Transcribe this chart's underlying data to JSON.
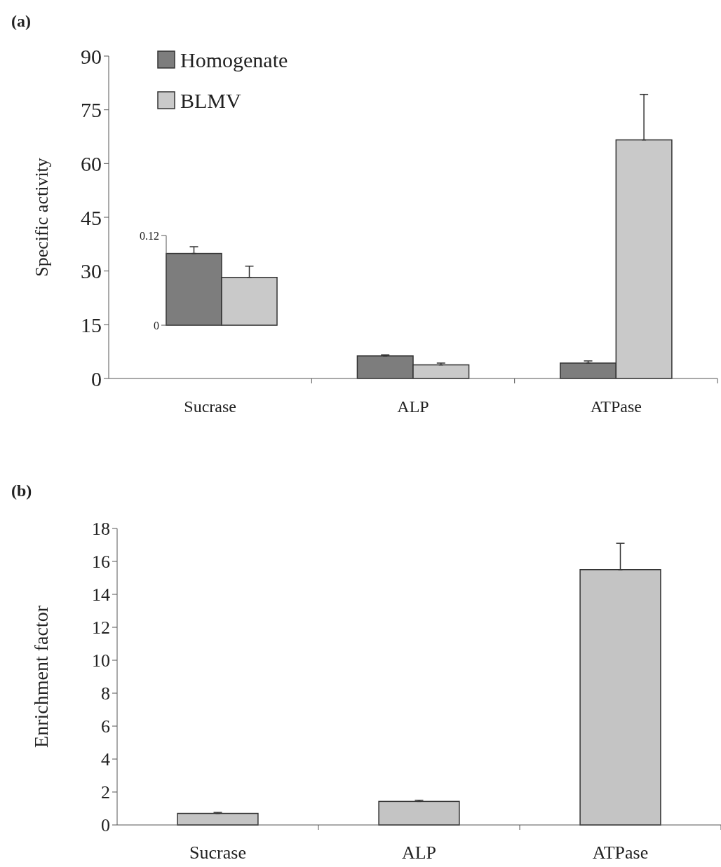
{
  "chart_data": [
    {
      "type": "bar",
      "title": "(a)",
      "ylabel": "Specific activity",
      "categories": [
        "Sucrase",
        "ALP",
        "ATPase"
      ],
      "ylim": [
        0,
        90
      ],
      "yticks": [
        0,
        15,
        30,
        45,
        60,
        75,
        90
      ],
      "legend": "top left",
      "series": [
        {
          "name": "Homogenate",
          "color": "#7d7d7d",
          "values": [
            null,
            6.3,
            4.3
          ],
          "errors": [
            null,
            [
              6.3,
              6.6
            ],
            [
              4.3,
              4.9
            ]
          ]
        },
        {
          "name": "BLMV",
          "color": "#c9c9c9",
          "values": [
            null,
            3.8,
            66.6
          ],
          "errors": [
            null,
            [
              3.8,
              4.3
            ],
            [
              66.6,
              79.3
            ]
          ]
        }
      ]
    },
    {
      "type": "bar",
      "categories": [
        null
      ],
      "ylim": [
        0,
        0.12
      ],
      "yticks": [
        0,
        0.12
      ],
      "tick_labels": "y",
      "series": [
        {
          "color": "#7d7d7d",
          "values": [
            0.096
          ],
          "errors": [
            [
              0.096,
              0.105
            ]
          ]
        },
        {
          "color": "#c9c9c9",
          "values": [
            0.064
          ],
          "errors": [
            [
              0.064,
              0.079
            ]
          ]
        }
      ]
    },
    {
      "type": "bar",
      "title": "(b)",
      "ylabel": "Enrichment factor",
      "categories": [
        "Sucrase",
        "ALP",
        "ATPase"
      ],
      "ylim": [
        0,
        18
      ],
      "yticks": [
        0,
        2,
        4,
        6,
        8,
        10,
        12,
        14,
        16,
        18
      ],
      "series": [
        {
          "color": "#c4c4c4",
          "values": [
            0.7,
            1.43,
            15.5
          ],
          "errors": [
            [
              0.7,
              0.76
            ],
            [
              1.43,
              1.5
            ],
            [
              15.5,
              17.1
            ]
          ]
        }
      ]
    }
  ]
}
